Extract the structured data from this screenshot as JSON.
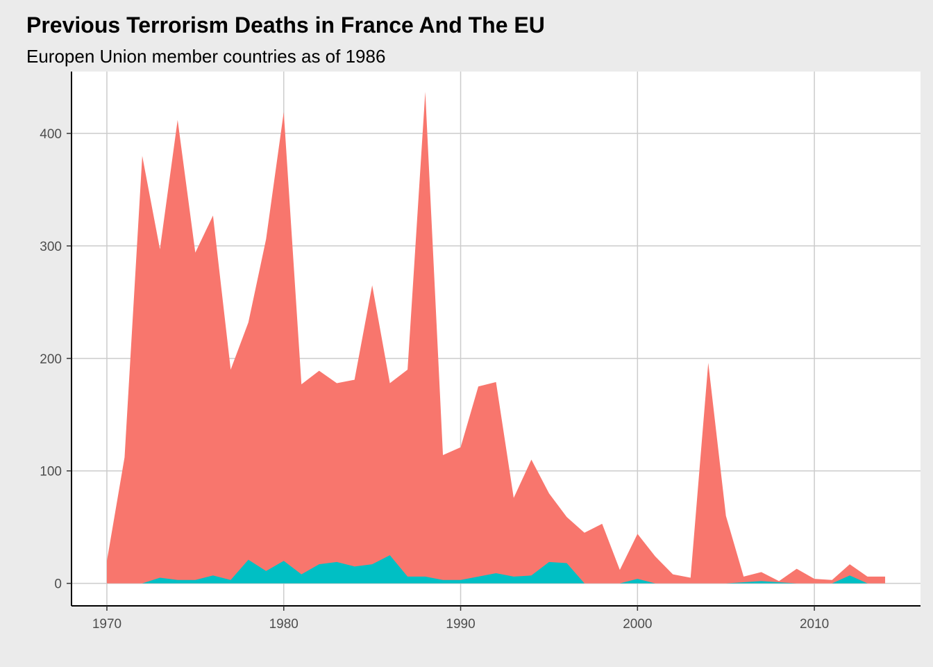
{
  "title": "Previous Terrorism Deaths in France And The EU",
  "subtitle": "Europen Union member countries as of 1986",
  "colors": {
    "figure_background": "#ebebeb",
    "panel_background": "#ffffff",
    "grid": "#cccccc",
    "axis_line": "#000000",
    "eu_series": "#f8766d",
    "france_series": "#00bfc4"
  },
  "chart_data": {
    "type": "area",
    "title": "Previous Terrorism Deaths in France And The EU",
    "subtitle": "Europen Union member countries as of 1986",
    "xlabel": "",
    "ylabel": "",
    "xlim": [
      1968,
      2016
    ],
    "ylim": [
      -20,
      455
    ],
    "x_ticks": [
      1970,
      1980,
      1990,
      2000,
      2010
    ],
    "y_ticks": [
      0,
      100,
      200,
      300,
      400
    ],
    "grid": true,
    "legend": "none",
    "x": [
      1970,
      1971,
      1972,
      1973,
      1974,
      1975,
      1976,
      1977,
      1978,
      1979,
      1980,
      1981,
      1982,
      1983,
      1984,
      1985,
      1986,
      1987,
      1988,
      1989,
      1990,
      1991,
      1992,
      1993,
      1994,
      1995,
      1996,
      1997,
      1998,
      1999,
      2000,
      2001,
      2002,
      2003,
      2004,
      2005,
      2006,
      2007,
      2008,
      2009,
      2010,
      2011,
      2012,
      2013,
      2014
    ],
    "series": [
      {
        "color": "#f8766d",
        "values": [
          20,
          112,
          380,
          297,
          412,
          294,
          327,
          190,
          232,
          306,
          419,
          177,
          189,
          178,
          181,
          265,
          178,
          190,
          437,
          114,
          121,
          175,
          179,
          76,
          110,
          80,
          59,
          45,
          53,
          12,
          44,
          24,
          8,
          5,
          196,
          60,
          6,
          10,
          2,
          13,
          4,
          3,
          17,
          6,
          6
        ]
      },
      {
        "color": "#00bfc4",
        "values": [
          0,
          0,
          0,
          5,
          3,
          3,
          7,
          3,
          21,
          11,
          20,
          8,
          17,
          19,
          15,
          17,
          25,
          6,
          6,
          3,
          3,
          6,
          9,
          6,
          7,
          19,
          18,
          0,
          0,
          0,
          4,
          0,
          0,
          0,
          0,
          0,
          1,
          2,
          1,
          0,
          0,
          0,
          7,
          0,
          0
        ]
      }
    ]
  }
}
